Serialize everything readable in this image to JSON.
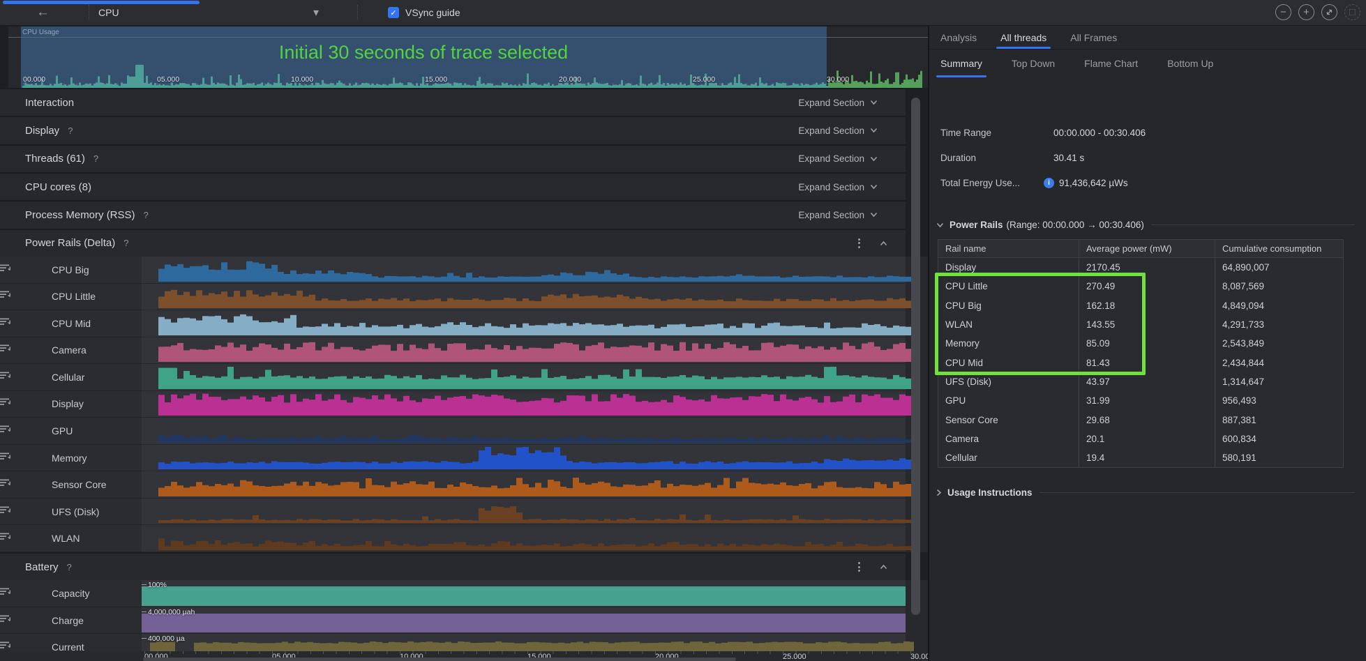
{
  "toolbar": {
    "process_label": "CPU",
    "vsync_label": "VSync guide",
    "vsync_checked": true
  },
  "timeline": {
    "track_label": "CPU Usage",
    "annotation": "Initial 30 seconds of trace selected",
    "ticks": [
      "00.000",
      "05.000",
      "10.000",
      "15.000",
      "20.000",
      "25.000",
      "30.000"
    ]
  },
  "sections": [
    {
      "title": "Interaction",
      "help": false,
      "action": "Expand Section"
    },
    {
      "title": "Display",
      "help": true,
      "action": "Expand Section"
    },
    {
      "title": "Threads (61)",
      "help": true,
      "action": "Expand Section"
    },
    {
      "title": "CPU cores (8)",
      "help": false,
      "action": "Expand Section"
    },
    {
      "title": "Process Memory (RSS)",
      "help": true,
      "action": "Expand Section"
    }
  ],
  "power_rails_section": {
    "title": "Power Rails (Delta)",
    "help": true
  },
  "rails": [
    {
      "name": "CPU Big",
      "color": "#2e6a9e",
      "profile": "cpu-big"
    },
    {
      "name": "CPU Little",
      "color": "#7d502d",
      "profile": "cpu-little"
    },
    {
      "name": "CPU Mid",
      "color": "#85aec6",
      "profile": "cpu-mid"
    },
    {
      "name": "Camera",
      "color": "#b05478",
      "profile": "camera"
    },
    {
      "name": "Cellular",
      "color": "#3fa389",
      "profile": "cellular"
    },
    {
      "name": "Display",
      "color": "#bb3093",
      "profile": "display"
    },
    {
      "name": "GPU",
      "color": "#21375f",
      "profile": "gpu"
    },
    {
      "name": "Memory",
      "color": "#2152c8",
      "profile": "memory"
    },
    {
      "name": "Sensor Core",
      "color": "#ad5a1a",
      "profile": "sensor"
    },
    {
      "name": "UFS (Disk)",
      "color": "#6b4124",
      "profile": "ufs"
    },
    {
      "name": "WLAN",
      "color": "#5e3a20",
      "profile": "wlan"
    }
  ],
  "battery_section": {
    "title": "Battery",
    "help": true
  },
  "battery_tracks": [
    {
      "name": "Capacity",
      "color": "#46a18f",
      "tick_label": "100%",
      "style": "full"
    },
    {
      "name": "Charge",
      "color": "#746198",
      "tick_label": "4,000,000 µah",
      "style": "full"
    },
    {
      "name": "Current",
      "color": "#6e653c",
      "tick_label": "400,000 µa",
      "style": "wavy"
    }
  ],
  "axis_ticks": [
    "00.000",
    "05.000",
    "10.000",
    "15.000",
    "20.000",
    "25.000",
    "30.000"
  ],
  "right_panel": {
    "tabs_primary": [
      {
        "label": "Analysis",
        "active": false
      },
      {
        "label": "All threads",
        "active": true
      },
      {
        "label": "All Frames",
        "active": false
      }
    ],
    "tabs_secondary": [
      {
        "label": "Summary",
        "active": true
      },
      {
        "label": "Top Down",
        "active": false
      },
      {
        "label": "Flame Chart",
        "active": false
      },
      {
        "label": "Bottom Up",
        "active": false
      }
    ],
    "info": [
      {
        "label": "Time Range",
        "value": "00:00.000 - 00:30.406",
        "info_icon": false
      },
      {
        "label": "Duration",
        "value": "30.41 s",
        "info_icon": false
      },
      {
        "label": "Total Energy Use...",
        "value": "91,436,642 µWs",
        "info_icon": true
      }
    ],
    "power_rails_header": {
      "title": "Power Rails",
      "range": "(Range: 00:00.000 → 00:30.406)"
    },
    "table": {
      "columns": [
        "Rail name",
        "Average power (mW)",
        "Cumulative consumption"
      ],
      "rows": [
        [
          "Display",
          "2170.45",
          "64,890,007"
        ],
        [
          "CPU Little",
          "270.49",
          "8,087,569"
        ],
        [
          "CPU Big",
          "162.18",
          "4,849,094"
        ],
        [
          "WLAN",
          "143.55",
          "4,291,733"
        ],
        [
          "Memory",
          "85.09",
          "2,543,849"
        ],
        [
          "CPU Mid",
          "81.43",
          "2,434,844"
        ],
        [
          "UFS (Disk)",
          "43.97",
          "1,314,647"
        ],
        [
          "GPU",
          "31.99",
          "956,493"
        ],
        [
          "Sensor Core",
          "29.68",
          "887,381"
        ],
        [
          "Camera",
          "20.1",
          "600,834"
        ],
        [
          "Cellular",
          "19.4",
          "580,191"
        ]
      ],
      "highlight_rows_from": 1,
      "highlight_rows_to": 5
    },
    "usage_instructions": "Usage Instructions"
  },
  "colors": {
    "accent_blue": "#3574f0",
    "annotation_green": "#52d33f",
    "highlight_green": "#71e13d",
    "selection_fill": "#35506e",
    "spark_selected": "#4d9e96",
    "spark_unselected": "#55a05a"
  }
}
